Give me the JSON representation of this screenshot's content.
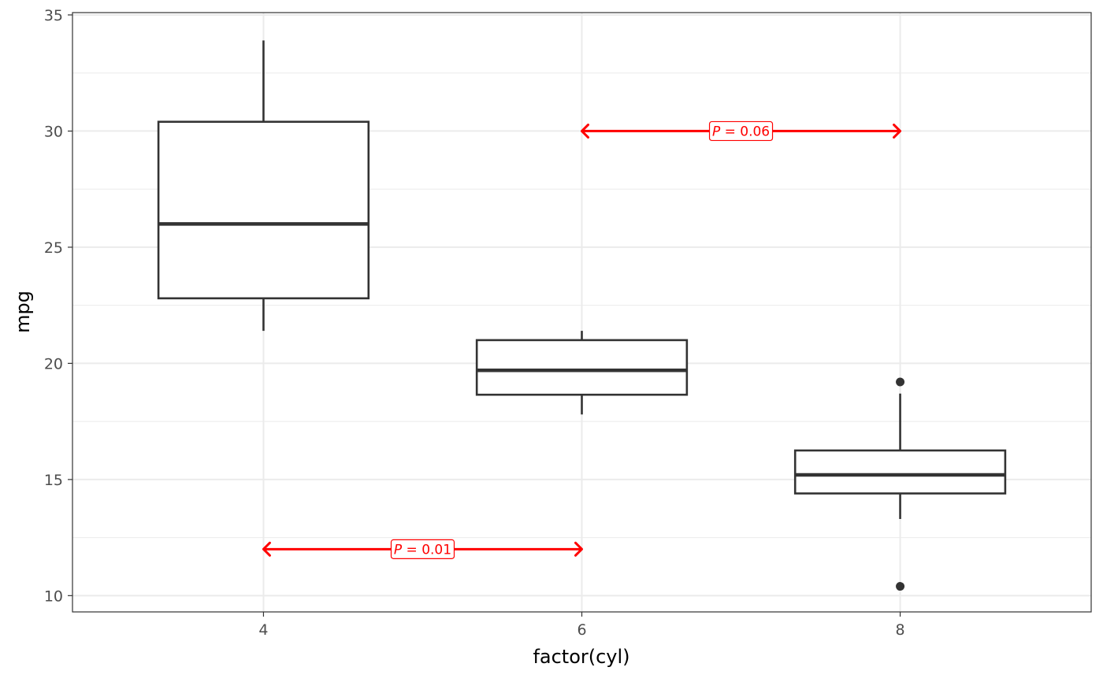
{
  "chart_data": {
    "type": "box",
    "xlabel": "factor(cyl)",
    "ylabel": "mpg",
    "ylim": [
      9.3,
      35.1
    ],
    "y_ticks": [
      10,
      15,
      20,
      25,
      30,
      35
    ],
    "categories": [
      "4",
      "6",
      "8"
    ],
    "grid": true,
    "boxes": [
      {
        "category": "4",
        "whisker_low": 21.4,
        "q1": 22.8,
        "median": 26.0,
        "q3": 30.4,
        "whisker_high": 33.9,
        "outliers": []
      },
      {
        "category": "6",
        "whisker_low": 17.8,
        "q1": 18.65,
        "median": 19.7,
        "q3": 21.0,
        "whisker_high": 21.4,
        "outliers": []
      },
      {
        "category": "8",
        "whisker_low": 13.3,
        "q1": 14.4,
        "median": 15.2,
        "q3": 16.25,
        "whisker_high": 18.7,
        "outliers": [
          10.4,
          19.2
        ]
      }
    ],
    "annotations": [
      {
        "from": "6",
        "to": "8",
        "y": 30,
        "p_symbol": "P",
        "p_rest": " = 0.06",
        "color": "#ff0000"
      },
      {
        "from": "4",
        "to": "6",
        "y": 12,
        "p_symbol": "P",
        "p_rest": " = 0.01",
        "color": "#ff0000"
      }
    ]
  }
}
